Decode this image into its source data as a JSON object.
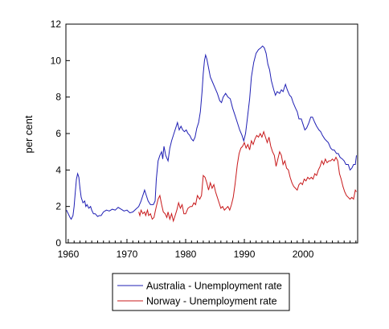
{
  "chart_data": {
    "type": "line",
    "title": "",
    "xlabel": "",
    "ylabel": "per cent",
    "xlim": [
      1959.6,
      2009.3
    ],
    "ylim": [
      0,
      12
    ],
    "x_ticks": [
      1960,
      1970,
      1980,
      1990,
      2000
    ],
    "y_ticks": [
      0,
      2,
      4,
      6,
      8,
      10,
      12
    ],
    "grid": false,
    "legend_position": "bottom",
    "series": [
      {
        "name": "Australia - Unemployment rate",
        "color": "#1f1fb4",
        "points": [
          [
            1959.7,
            1.8
          ],
          [
            1960.0,
            1.6
          ],
          [
            1960.3,
            1.4
          ],
          [
            1960.5,
            1.3
          ],
          [
            1960.8,
            1.5
          ],
          [
            1961.0,
            2.0
          ],
          [
            1961.2,
            2.8
          ],
          [
            1961.4,
            3.5
          ],
          [
            1961.6,
            3.8
          ],
          [
            1961.8,
            3.6
          ],
          [
            1962.0,
            3.0
          ],
          [
            1962.2,
            2.5
          ],
          [
            1962.5,
            2.2
          ],
          [
            1962.8,
            2.3
          ],
          [
            1963.0,
            2.0
          ],
          [
            1963.2,
            2.1
          ],
          [
            1963.5,
            1.9
          ],
          [
            1963.8,
            2.0
          ],
          [
            1964.0,
            1.8
          ],
          [
            1964.3,
            1.6
          ],
          [
            1964.6,
            1.6
          ],
          [
            1965.0,
            1.45
          ],
          [
            1965.3,
            1.5
          ],
          [
            1965.6,
            1.5
          ],
          [
            1966.0,
            1.7
          ],
          [
            1966.5,
            1.8
          ],
          [
            1967.0,
            1.75
          ],
          [
            1967.5,
            1.85
          ],
          [
            1968.0,
            1.8
          ],
          [
            1968.5,
            1.95
          ],
          [
            1969.0,
            1.85
          ],
          [
            1969.5,
            1.75
          ],
          [
            1970.0,
            1.8
          ],
          [
            1970.5,
            1.65
          ],
          [
            1971.0,
            1.7
          ],
          [
            1971.5,
            1.85
          ],
          [
            1972.0,
            2.0
          ],
          [
            1972.4,
            2.3
          ],
          [
            1972.7,
            2.6
          ],
          [
            1973.0,
            2.9
          ],
          [
            1973.3,
            2.6
          ],
          [
            1973.6,
            2.3
          ],
          [
            1974.0,
            2.1
          ],
          [
            1974.5,
            2.1
          ],
          [
            1974.8,
            2.3
          ],
          [
            1975.0,
            3.5
          ],
          [
            1975.3,
            4.5
          ],
          [
            1975.6,
            4.8
          ],
          [
            1975.9,
            5.0
          ],
          [
            1976.1,
            4.6
          ],
          [
            1976.3,
            5.3
          ],
          [
            1976.6,
            4.8
          ],
          [
            1977.0,
            4.5
          ],
          [
            1977.3,
            5.2
          ],
          [
            1977.6,
            5.6
          ],
          [
            1978.0,
            6.0
          ],
          [
            1978.3,
            6.3
          ],
          [
            1978.6,
            6.6
          ],
          [
            1978.9,
            6.2
          ],
          [
            1979.2,
            6.4
          ],
          [
            1979.5,
            6.2
          ],
          [
            1979.8,
            6.1
          ],
          [
            1980.1,
            6.2
          ],
          [
            1980.4,
            6.0
          ],
          [
            1980.7,
            5.9
          ],
          [
            1981.0,
            5.7
          ],
          [
            1981.3,
            5.6
          ],
          [
            1981.6,
            5.8
          ],
          [
            1981.9,
            6.3
          ],
          [
            1982.2,
            6.6
          ],
          [
            1982.5,
            7.2
          ],
          [
            1982.8,
            8.3
          ],
          [
            1983.0,
            9.3
          ],
          [
            1983.2,
            10.0
          ],
          [
            1983.4,
            10.3
          ],
          [
            1983.6,
            10.1
          ],
          [
            1983.9,
            9.6
          ],
          [
            1984.2,
            9.1
          ],
          [
            1984.6,
            8.8
          ],
          [
            1985.0,
            8.5
          ],
          [
            1985.4,
            8.2
          ],
          [
            1985.8,
            7.8
          ],
          [
            1986.1,
            7.7
          ],
          [
            1986.4,
            8.0
          ],
          [
            1986.8,
            8.2
          ],
          [
            1987.2,
            8.0
          ],
          [
            1987.6,
            7.9
          ],
          [
            1988.0,
            7.4
          ],
          [
            1988.4,
            7.0
          ],
          [
            1988.8,
            6.6
          ],
          [
            1989.2,
            6.2
          ],
          [
            1989.6,
            5.9
          ],
          [
            1989.9,
            5.6
          ],
          [
            1990.2,
            6.0
          ],
          [
            1990.5,
            6.8
          ],
          [
            1990.9,
            7.9
          ],
          [
            1991.2,
            9.1
          ],
          [
            1991.6,
            9.9
          ],
          [
            1992.0,
            10.4
          ],
          [
            1992.4,
            10.6
          ],
          [
            1992.8,
            10.7
          ],
          [
            1993.1,
            10.8
          ],
          [
            1993.4,
            10.7
          ],
          [
            1993.7,
            10.4
          ],
          [
            1994.0,
            9.8
          ],
          [
            1994.3,
            9.5
          ],
          [
            1994.6,
            8.9
          ],
          [
            1995.0,
            8.4
          ],
          [
            1995.3,
            8.1
          ],
          [
            1995.6,
            8.3
          ],
          [
            1996.0,
            8.2
          ],
          [
            1996.3,
            8.4
          ],
          [
            1996.6,
            8.3
          ],
          [
            1997.0,
            8.7
          ],
          [
            1997.3,
            8.4
          ],
          [
            1997.7,
            8.1
          ],
          [
            1998.0,
            8.0
          ],
          [
            1998.3,
            7.7
          ],
          [
            1998.7,
            7.4
          ],
          [
            1999.0,
            7.2
          ],
          [
            1999.3,
            6.8
          ],
          [
            1999.7,
            6.8
          ],
          [
            2000.0,
            6.5
          ],
          [
            2000.3,
            6.2
          ],
          [
            2000.6,
            6.3
          ],
          [
            2001.0,
            6.6
          ],
          [
            2001.3,
            6.9
          ],
          [
            2001.6,
            6.9
          ],
          [
            2002.0,
            6.6
          ],
          [
            2002.3,
            6.4
          ],
          [
            2002.7,
            6.2
          ],
          [
            2003.0,
            6.1
          ],
          [
            2003.3,
            5.9
          ],
          [
            2003.7,
            5.7
          ],
          [
            2004.0,
            5.6
          ],
          [
            2004.3,
            5.5
          ],
          [
            2004.7,
            5.2
          ],
          [
            2005.0,
            5.1
          ],
          [
            2005.3,
            5.1
          ],
          [
            2005.7,
            4.9
          ],
          [
            2006.0,
            4.9
          ],
          [
            2006.3,
            4.7
          ],
          [
            2006.7,
            4.6
          ],
          [
            2007.0,
            4.5
          ],
          [
            2007.3,
            4.3
          ],
          [
            2007.7,
            4.3
          ],
          [
            2008.0,
            4.0
          ],
          [
            2008.3,
            4.1
          ],
          [
            2008.6,
            4.3
          ],
          [
            2008.9,
            4.3
          ],
          [
            2009.1,
            4.8
          ]
        ]
      },
      {
        "name": "Norway - Unemployment rate",
        "color": "#c8191b",
        "points": [
          [
            1972.0,
            1.7
          ],
          [
            1972.2,
            1.5
          ],
          [
            1972.4,
            1.8
          ],
          [
            1972.7,
            1.6
          ],
          [
            1973.0,
            1.7
          ],
          [
            1973.2,
            1.5
          ],
          [
            1973.5,
            1.8
          ],
          [
            1973.7,
            1.5
          ],
          [
            1974.0,
            1.6
          ],
          [
            1974.3,
            1.3
          ],
          [
            1974.6,
            1.4
          ],
          [
            1974.8,
            1.7
          ],
          [
            1975.0,
            2.0
          ],
          [
            1975.3,
            2.4
          ],
          [
            1975.6,
            2.6
          ],
          [
            1975.9,
            2.1
          ],
          [
            1976.2,
            1.7
          ],
          [
            1976.5,
            1.6
          ],
          [
            1976.8,
            1.4
          ],
          [
            1977.0,
            1.7
          ],
          [
            1977.3,
            1.3
          ],
          [
            1977.6,
            1.6
          ],
          [
            1977.9,
            1.2
          ],
          [
            1978.2,
            1.5
          ],
          [
            1978.5,
            1.8
          ],
          [
            1978.8,
            2.2
          ],
          [
            1979.1,
            1.9
          ],
          [
            1979.4,
            2.1
          ],
          [
            1979.7,
            1.6
          ],
          [
            1980.0,
            1.6
          ],
          [
            1980.4,
            1.9
          ],
          [
            1980.8,
            2.0
          ],
          [
            1981.1,
            2.0
          ],
          [
            1981.4,
            2.2
          ],
          [
            1981.7,
            2.1
          ],
          [
            1982.0,
            2.6
          ],
          [
            1982.4,
            2.4
          ],
          [
            1982.7,
            2.6
          ],
          [
            1983.0,
            3.7
          ],
          [
            1983.3,
            3.6
          ],
          [
            1983.6,
            3.3
          ],
          [
            1983.9,
            2.9
          ],
          [
            1984.2,
            3.3
          ],
          [
            1984.5,
            3.0
          ],
          [
            1984.8,
            3.2
          ],
          [
            1985.1,
            2.8
          ],
          [
            1985.4,
            2.5
          ],
          [
            1985.7,
            2.2
          ],
          [
            1986.0,
            1.9
          ],
          [
            1986.3,
            2.0
          ],
          [
            1986.6,
            1.8
          ],
          [
            1986.9,
            1.9
          ],
          [
            1987.2,
            2.0
          ],
          [
            1987.5,
            1.8
          ],
          [
            1987.8,
            2.1
          ],
          [
            1988.1,
            2.5
          ],
          [
            1988.4,
            3.2
          ],
          [
            1988.8,
            4.3
          ],
          [
            1989.1,
            4.9
          ],
          [
            1989.4,
            5.2
          ],
          [
            1989.7,
            5.3
          ],
          [
            1990.0,
            5.5
          ],
          [
            1990.3,
            5.2
          ],
          [
            1990.6,
            5.4
          ],
          [
            1990.9,
            5.1
          ],
          [
            1991.2,
            5.6
          ],
          [
            1991.5,
            5.4
          ],
          [
            1991.8,
            5.7
          ],
          [
            1992.1,
            5.9
          ],
          [
            1992.4,
            5.8
          ],
          [
            1992.7,
            6.0
          ],
          [
            1993.0,
            5.8
          ],
          [
            1993.3,
            6.1
          ],
          [
            1993.6,
            5.8
          ],
          [
            1993.9,
            5.5
          ],
          [
            1994.2,
            5.8
          ],
          [
            1994.5,
            5.3
          ],
          [
            1994.8,
            5.0
          ],
          [
            1995.1,
            4.8
          ],
          [
            1995.4,
            4.2
          ],
          [
            1995.7,
            4.6
          ],
          [
            1996.0,
            5.0
          ],
          [
            1996.3,
            4.8
          ],
          [
            1996.6,
            4.3
          ],
          [
            1996.9,
            4.5
          ],
          [
            1997.2,
            4.1
          ],
          [
            1997.5,
            4.0
          ],
          [
            1997.8,
            3.6
          ],
          [
            1998.1,
            3.3
          ],
          [
            1998.4,
            3.1
          ],
          [
            1998.7,
            3.0
          ],
          [
            1999.0,
            2.9
          ],
          [
            1999.3,
            3.2
          ],
          [
            1999.6,
            3.3
          ],
          [
            1999.9,
            3.2
          ],
          [
            2000.2,
            3.5
          ],
          [
            2000.5,
            3.4
          ],
          [
            2000.8,
            3.6
          ],
          [
            2001.1,
            3.5
          ],
          [
            2001.4,
            3.6
          ],
          [
            2001.7,
            3.5
          ],
          [
            2002.0,
            3.8
          ],
          [
            2002.3,
            3.7
          ],
          [
            2002.6,
            4.0
          ],
          [
            2002.9,
            4.2
          ],
          [
            2003.2,
            4.5
          ],
          [
            2003.5,
            4.3
          ],
          [
            2003.8,
            4.6
          ],
          [
            2004.1,
            4.4
          ],
          [
            2004.4,
            4.5
          ],
          [
            2004.7,
            4.5
          ],
          [
            2005.0,
            4.6
          ],
          [
            2005.3,
            4.5
          ],
          [
            2005.6,
            4.7
          ],
          [
            2005.9,
            4.5
          ],
          [
            2006.2,
            3.8
          ],
          [
            2006.5,
            3.5
          ],
          [
            2006.8,
            3.1
          ],
          [
            2007.1,
            2.8
          ],
          [
            2007.4,
            2.6
          ],
          [
            2007.7,
            2.5
          ],
          [
            2008.0,
            2.4
          ],
          [
            2008.3,
            2.5
          ],
          [
            2008.6,
            2.4
          ],
          [
            2008.9,
            2.9
          ],
          [
            2009.1,
            2.8
          ]
        ]
      }
    ]
  }
}
